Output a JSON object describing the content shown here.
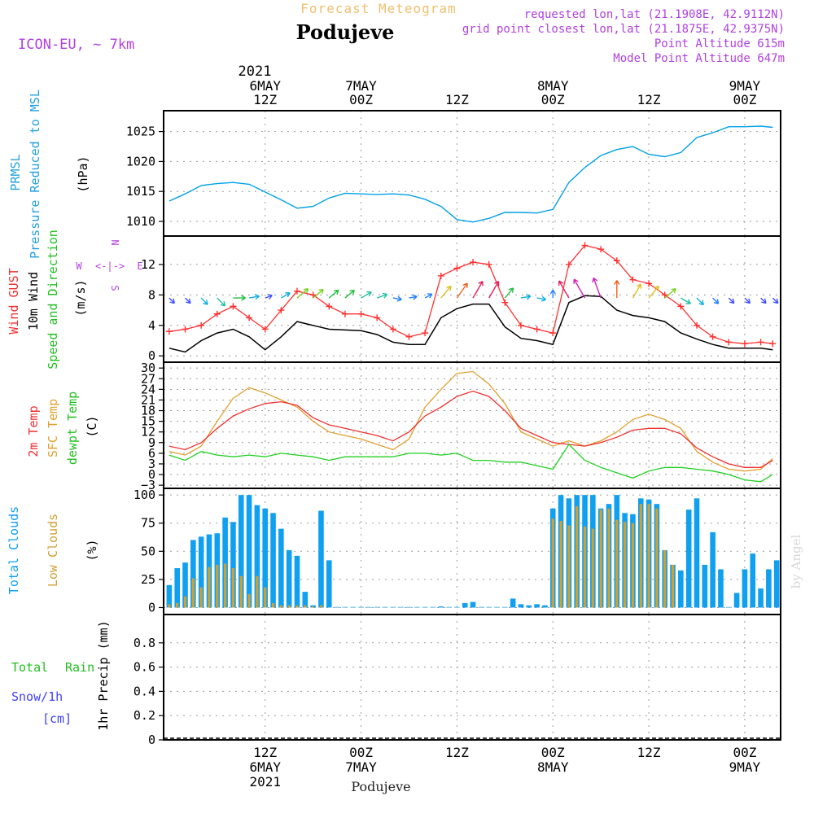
{
  "header": {
    "title_top": "Forecast Meteogram",
    "station": "Podujeve",
    "model": "ICON-EU, ~ 7km",
    "requested": "requested lon,lat (21.1908E, 42.9112N)",
    "grid": "grid point closest lon,lat (21.1875E, 42.9375N)",
    "point_alt": "Point Altitude 615m",
    "model_alt": "Model Point Altitude 647m",
    "footer_station": "Podujeve",
    "watermark": "by Angel"
  },
  "time_axis": {
    "year": "2021",
    "ticks": [
      {
        "t": 12,
        "top": [
          "6MAY",
          "12Z"
        ],
        "bottom": [
          "12Z",
          "6MAY"
        ]
      },
      {
        "t": 24,
        "top": [
          "7MAY",
          "00Z"
        ],
        "bottom": [
          "00Z",
          "7MAY"
        ]
      },
      {
        "t": 36,
        "top": [
          "",
          "12Z"
        ],
        "bottom": [
          "12Z",
          ""
        ]
      },
      {
        "t": 48,
        "top": [
          "8MAY",
          "00Z"
        ],
        "bottom": [
          "00Z",
          "8MAY"
        ]
      },
      {
        "t": 60,
        "top": [
          "",
          "12Z"
        ],
        "bottom": [
          "12Z",
          ""
        ]
      },
      {
        "t": 72,
        "top": [
          "9MAY",
          "00Z"
        ],
        "bottom": [
          "00Z",
          "9MAY"
        ]
      }
    ]
  },
  "labels": {
    "prmsl_a": "PRMSL",
    "prmsl_b": "Pressure Reduced to MSL",
    "prmsl_unit": "(hPa)",
    "gust": "Wind GUST",
    "wind10": "10m Wind",
    "wind_dir": "Speed and Direction",
    "wind_unit": "(m/s)",
    "compass_w": "W",
    "compass_arrows": "<-|->",
    "compass_e": "E",
    "compass_n": "N",
    "compass_s": "S",
    "t2m": "2m Temp",
    "sfc": "SFC Temp",
    "dew": "dewpt Temp",
    "temp_unit": "(C)",
    "tcc": "Total Clouds",
    "lcc": "Low Clouds",
    "cloud_unit": "(%)",
    "rain": "Total",
    "rain2": "Rain",
    "snow": "Snow/1h",
    "snow_unit": "[cm]",
    "precip": "1hr Precip (mm)"
  },
  "colors": {
    "pressure": "#00a0e8",
    "gust": "#ff3030",
    "wind": "#000000",
    "t2m": "#f03030",
    "sfc": "#e0a030",
    "dew": "#20d020",
    "tcc": "#10a0f0",
    "lcc": "#d0a030",
    "rain": "#20c020",
    "snow": "#4040ff",
    "label_purple": "#b040e0",
    "grid": "#9a9a9a"
  },
  "chart_data": [
    {
      "type": "line",
      "title": "PRMSL Pressure Reduced to MSL",
      "ylabel": "(hPa)",
      "ylim": [
        1008,
        1028
      ],
      "yticks": [
        1010,
        1015,
        1020,
        1025
      ],
      "x_hours": [
        0,
        2,
        4,
        6,
        8,
        10,
        12,
        14,
        16,
        18,
        20,
        22,
        24,
        26,
        28,
        30,
        32,
        34,
        36,
        38,
        40,
        42,
        44,
        46,
        48,
        50,
        52,
        54,
        56,
        58,
        60,
        62,
        64,
        66,
        68,
        70,
        72,
        74,
        75.5
      ],
      "series": [
        {
          "name": "PRMSL",
          "values": [
            1013.4,
            1014.6,
            1016.0,
            1016.3,
            1016.5,
            1016.2,
            1014.9,
            1013.6,
            1012.2,
            1012.5,
            1013.9,
            1014.7,
            1014.6,
            1014.5,
            1014.6,
            1014.4,
            1013.7,
            1012.5,
            1010.3,
            1009.9,
            1010.5,
            1011.5,
            1011.5,
            1011.4,
            1012.0,
            1016.5,
            1019.0,
            1021.0,
            1022.0,
            1022.5,
            1021.2,
            1020.8,
            1021.5,
            1024.0,
            1024.8,
            1025.8,
            1025.8,
            1025.9,
            1025.7
          ]
        }
      ]
    },
    {
      "type": "line",
      "title": "Wind GUST / 10m Wind Speed and Direction",
      "ylabel": "(m/s)",
      "ylim": [
        -0.5,
        15
      ],
      "yticks": [
        0,
        4,
        8,
        12
      ],
      "x_hours": [
        0,
        2,
        4,
        6,
        8,
        10,
        12,
        14,
        16,
        18,
        20,
        22,
        24,
        26,
        28,
        30,
        32,
        34,
        36,
        38,
        40,
        42,
        44,
        46,
        48,
        50,
        52,
        54,
        56,
        58,
        60,
        62,
        64,
        66,
        68,
        70,
        72,
        74,
        75.5
      ],
      "series": [
        {
          "name": "Wind GUST",
          "values": [
            3.2,
            3.5,
            4.0,
            5.5,
            6.5,
            5.0,
            3.5,
            6.0,
            8.5,
            8.0,
            6.5,
            5.5,
            5.5,
            5.0,
            3.5,
            2.5,
            3.0,
            10.5,
            11.5,
            12.3,
            12.0,
            7.0,
            4.0,
            3.5,
            3.0,
            12.0,
            14.5,
            14.0,
            12.5,
            10.0,
            9.5,
            8.0,
            6.5,
            4.0,
            2.5,
            1.8,
            1.6,
            1.8,
            1.6
          ]
        },
        {
          "name": "10m Wind",
          "values": [
            1.0,
            0.5,
            2.0,
            3.0,
            3.5,
            2.5,
            0.8,
            2.5,
            4.5,
            4.0,
            3.5,
            3.4,
            3.3,
            2.8,
            1.8,
            1.5,
            1.5,
            5.0,
            6.2,
            6.8,
            6.8,
            3.8,
            2.3,
            2.0,
            1.5,
            7.0,
            7.9,
            7.8,
            6.0,
            5.3,
            5.0,
            4.5,
            3.0,
            2.2,
            1.5,
            1.0,
            1.0,
            1.0,
            0.8
          ]
        }
      ],
      "wind_direction_deg": [
        315,
        315,
        315,
        315,
        270,
        260,
        250,
        240,
        230,
        230,
        230,
        230,
        240,
        250,
        280,
        260,
        240,
        220,
        215,
        210,
        210,
        220,
        260,
        280,
        180,
        150,
        150,
        160,
        180,
        210,
        220,
        230,
        300,
        315,
        315,
        315,
        315,
        315,
        315
      ]
    },
    {
      "type": "line",
      "title": "2m Temp / SFC Temp / dewpt Temp",
      "ylabel": "(C)",
      "ylim": [
        -3,
        30
      ],
      "yticks": [
        -3,
        0,
        3,
        6,
        9,
        12,
        15,
        18,
        21,
        24,
        27,
        30
      ],
      "x_hours": [
        0,
        2,
        4,
        6,
        8,
        10,
        12,
        14,
        16,
        18,
        20,
        22,
        24,
        26,
        28,
        30,
        32,
        34,
        36,
        38,
        40,
        42,
        44,
        46,
        48,
        50,
        52,
        54,
        56,
        58,
        60,
        62,
        64,
        66,
        68,
        70,
        72,
        74,
        75.5
      ],
      "series": [
        {
          "name": "2m Temp",
          "values": [
            8.0,
            7.0,
            9.0,
            13.0,
            16.5,
            18.5,
            20.0,
            20.5,
            19.5,
            16.0,
            14.0,
            13.0,
            12.0,
            11.0,
            9.5,
            12.0,
            16.5,
            19.0,
            22.0,
            23.5,
            22.0,
            18.0,
            13.0,
            11.0,
            9.0,
            8.5,
            8.0,
            9.0,
            10.5,
            12.5,
            13.0,
            13.0,
            11.5,
            7.5,
            5.0,
            3.0,
            2.0,
            2.0,
            4.0
          ]
        },
        {
          "name": "SFC Temp",
          "values": [
            6.5,
            5.5,
            8.0,
            15.0,
            21.5,
            24.5,
            23.0,
            21.0,
            19.0,
            15.0,
            12.0,
            11.0,
            10.0,
            8.5,
            7.0,
            10.0,
            19.0,
            24.0,
            28.5,
            29.0,
            25.5,
            20.0,
            12.0,
            10.0,
            8.0,
            9.5,
            8.0,
            9.5,
            12.0,
            15.5,
            17.0,
            15.5,
            13.0,
            6.5,
            3.5,
            1.5,
            1.0,
            1.5,
            4.5
          ]
        },
        {
          "name": "dewpt Temp",
          "values": [
            5.5,
            4.0,
            6.5,
            5.5,
            5.0,
            5.5,
            5.0,
            6.0,
            5.5,
            5.0,
            4.0,
            5.0,
            5.0,
            5.0,
            5.0,
            6.0,
            6.0,
            5.5,
            6.0,
            4.0,
            4.0,
            3.5,
            3.5,
            2.5,
            1.5,
            8.5,
            4.0,
            2.0,
            0.5,
            -1.0,
            1.0,
            2.0,
            2.0,
            1.5,
            1.0,
            0.0,
            -1.5,
            -2.0,
            0.0
          ]
        }
      ]
    },
    {
      "type": "bar",
      "title": "Total Clouds / Low Clouds",
      "ylabel": "(%)",
      "ylim": [
        0,
        100
      ],
      "yticks": [
        0,
        25,
        50,
        75,
        100
      ],
      "x_hours": [
        0,
        1,
        2,
        3,
        4,
        5,
        6,
        7,
        8,
        9,
        10,
        11,
        12,
        13,
        14,
        15,
        16,
        17,
        18,
        19,
        20,
        21,
        22,
        23,
        24,
        25,
        26,
        27,
        28,
        29,
        30,
        31,
        32,
        33,
        34,
        35,
        36,
        37,
        38,
        39,
        40,
        41,
        42,
        43,
        44,
        45,
        46,
        47,
        48,
        49,
        50,
        51,
        52,
        53,
        54,
        55,
        56,
        57,
        58,
        59,
        60,
        61,
        62,
        63,
        64,
        65,
        66,
        67,
        68,
        69,
        70,
        71,
        72,
        73,
        74,
        75,
        76
      ],
      "series": [
        {
          "name": "Total Clouds",
          "values": [
            20,
            35,
            40,
            60,
            63,
            65,
            66,
            80,
            76,
            100,
            100,
            91,
            88,
            84,
            70,
            51,
            46,
            14,
            2,
            86,
            42,
            0,
            0,
            0,
            0,
            0,
            0,
            0,
            0,
            0,
            0,
            0,
            0,
            0,
            1,
            0,
            0,
            4,
            5,
            0,
            0,
            0,
            0,
            8,
            3,
            2,
            3,
            2,
            88,
            100,
            97,
            100,
            100,
            100,
            88,
            92,
            100,
            84,
            83,
            97,
            96,
            92,
            51,
            38,
            33,
            87,
            97,
            38,
            67,
            34,
            0,
            13,
            34,
            48,
            17,
            34,
            42
          ]
        },
        {
          "name": "Low Clouds",
          "values": [
            3,
            4,
            10,
            26,
            18,
            36,
            38,
            39,
            35,
            28,
            12,
            28,
            18,
            4,
            2,
            2,
            2,
            2,
            1,
            2,
            0,
            0,
            0,
            0,
            0,
            0,
            0,
            0,
            0,
            0,
            0,
            0,
            0,
            0,
            0,
            0,
            0,
            0,
            0,
            0,
            0,
            0,
            0,
            0,
            0,
            0,
            0,
            0,
            79,
            77,
            73,
            90,
            72,
            70,
            87,
            88,
            78,
            76,
            75,
            92,
            92,
            88,
            51,
            38,
            0,
            0,
            0,
            0,
            0,
            0,
            0,
            0,
            0,
            0,
            0,
            0,
            0
          ]
        }
      ]
    },
    {
      "type": "bar",
      "title": "1hr Precip (mm)",
      "ylabel": "1hr Precip (mm)",
      "ylim": [
        0,
        1.0
      ],
      "yticks": [
        0,
        0.2,
        0.4,
        0.6,
        0.8
      ],
      "series": [
        {
          "name": "Total Rain",
          "values": []
        },
        {
          "name": "Snow/1h",
          "values": []
        }
      ]
    }
  ]
}
